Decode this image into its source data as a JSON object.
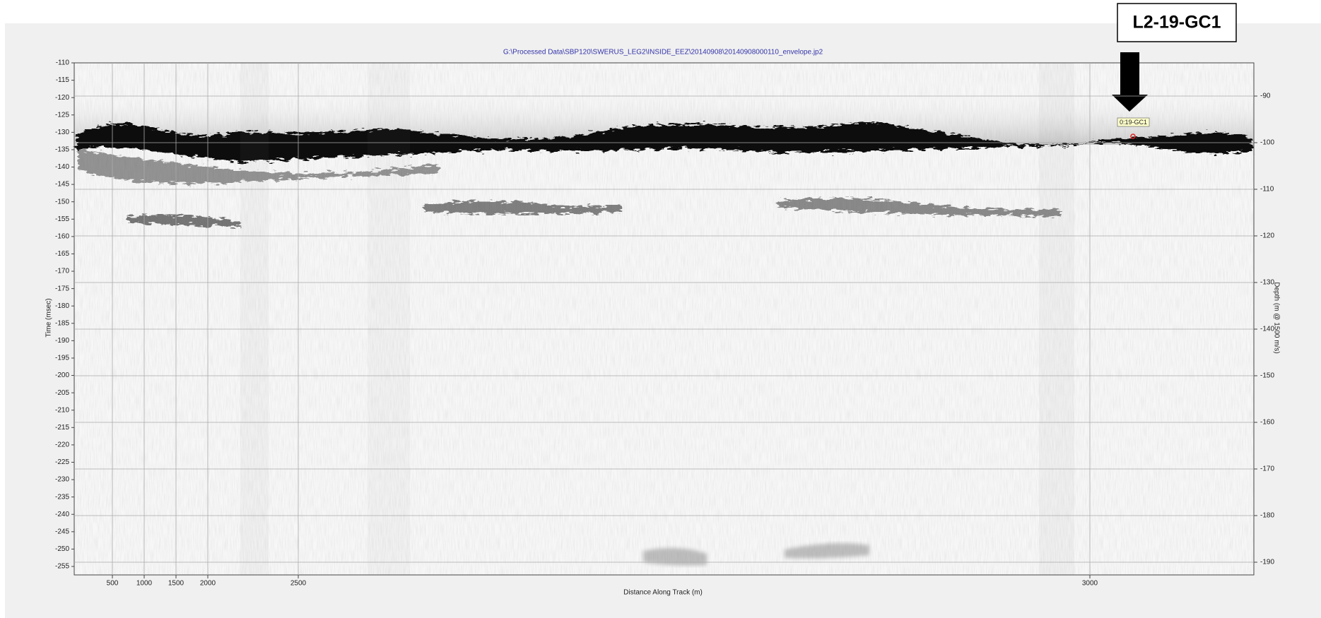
{
  "profile": {
    "file_path": "G:\\Processed  Data\\SBP120\\SWERUS_LEG2\\INSIDE_EEZ\\20140908\\20140908000110_envelope.jp2",
    "left_axis": {
      "label": "Time (msec)",
      "ticks": [
        -110,
        -115,
        -120,
        -125,
        -130,
        -135,
        -140,
        -145,
        -150,
        -155,
        -160,
        -165,
        -170,
        -175,
        -180,
        -185,
        -190,
        -195,
        -200,
        -205,
        -210,
        -215,
        -220,
        -225,
        -230,
        -235,
        -240,
        -245,
        -250,
        -255
      ]
    },
    "right_axis": {
      "label": "Depth (m @ 1500 m/s)",
      "ticks": [
        -90,
        -100,
        -110,
        -120,
        -130,
        -140,
        -150,
        -160,
        -170,
        -180,
        -190
      ]
    },
    "x_axis": {
      "label": "Distance Along Track (m)",
      "ticks": [
        500,
        1000,
        1500,
        2000,
        2500,
        3000
      ]
    },
    "marker_label": "0:19-GC1",
    "annotation": "L2-19-GC1"
  }
}
